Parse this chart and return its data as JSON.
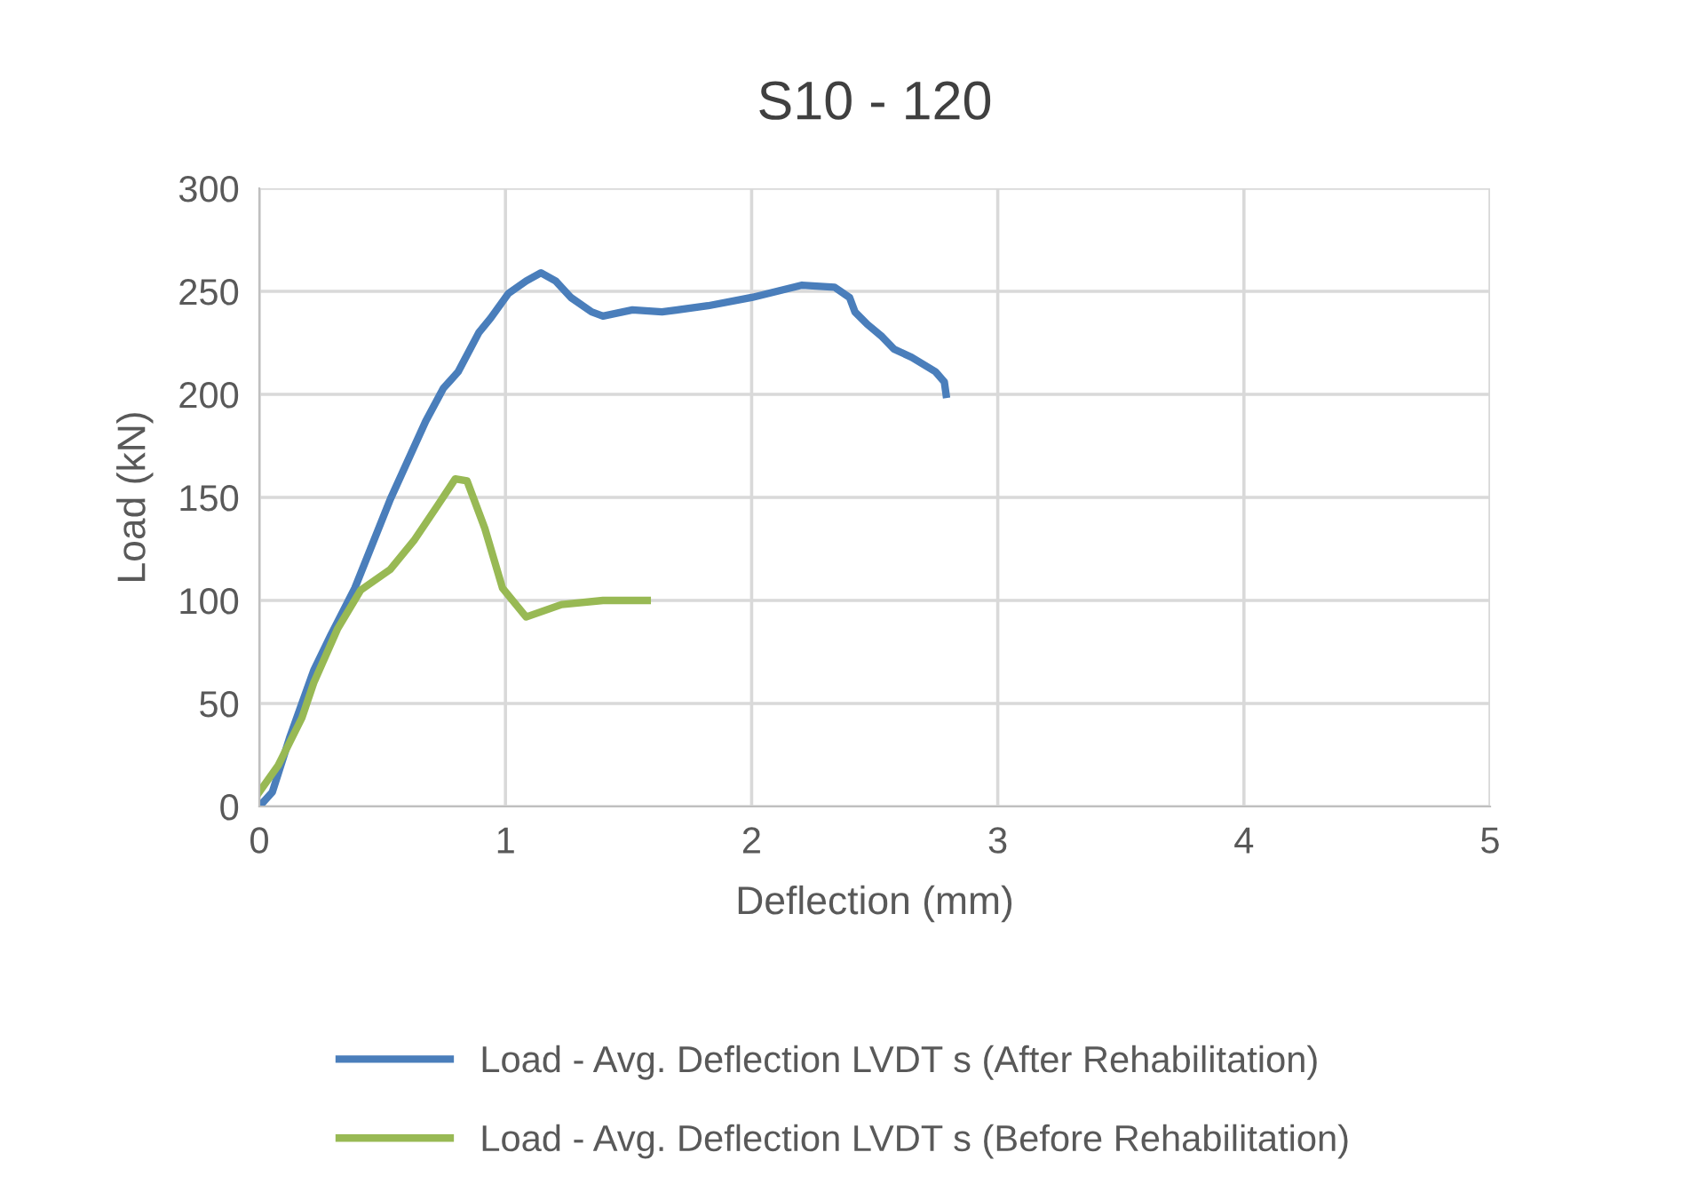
{
  "chart_data": {
    "type": "line",
    "title": "S10 - 120",
    "xlabel": "Deflection (mm)",
    "ylabel": "Load (kN)",
    "xlim": [
      0,
      5
    ],
    "ylim": [
      0,
      300
    ],
    "xticks": [
      0,
      1,
      2,
      3,
      4,
      5
    ],
    "yticks": [
      0,
      50,
      100,
      150,
      200,
      250,
      300
    ],
    "grid": true,
    "legend": "bottom",
    "marker": "none",
    "line_style": "solid",
    "series": [
      {
        "name": "Load - Avg. Deflection LVDT s (After Rehabilitation)",
        "color": "#4a7ebb",
        "x": [
          0,
          0.053,
          0.125,
          0.221,
          0.29,
          0.388,
          0.532,
          0.676,
          0.748,
          0.808,
          0.892,
          0.94,
          1.012,
          1.084,
          1.144,
          1.204,
          1.266,
          1.35,
          1.396,
          1.516,
          1.636,
          1.823,
          2.0,
          2.205,
          2.337,
          2.398,
          2.42,
          2.47,
          2.53,
          2.578,
          2.65,
          2.747,
          2.783,
          2.79
        ],
        "values": [
          0,
          7,
          34,
          66,
          83,
          106,
          149,
          187,
          203,
          211,
          230,
          237,
          249,
          255,
          259,
          255,
          247,
          240,
          238,
          241,
          240,
          243,
          247,
          253,
          252,
          247,
          240,
          234,
          228,
          222,
          218,
          211,
          206,
          200
        ]
      },
      {
        "name": "Load - Avg. Deflection LVDT s (Before Rehabilitation)",
        "color": "#98b954",
        "x": [
          0,
          0.077,
          0.173,
          0.221,
          0.317,
          0.412,
          0.532,
          0.628,
          0.724,
          0.796,
          0.844,
          0.916,
          0.988,
          1.084,
          1.228,
          1.396,
          1.576
        ],
        "values": [
          7,
          20,
          43,
          60,
          86,
          105,
          115,
          129,
          146,
          159,
          158,
          135,
          106,
          92,
          98,
          100,
          100
        ]
      }
    ]
  }
}
